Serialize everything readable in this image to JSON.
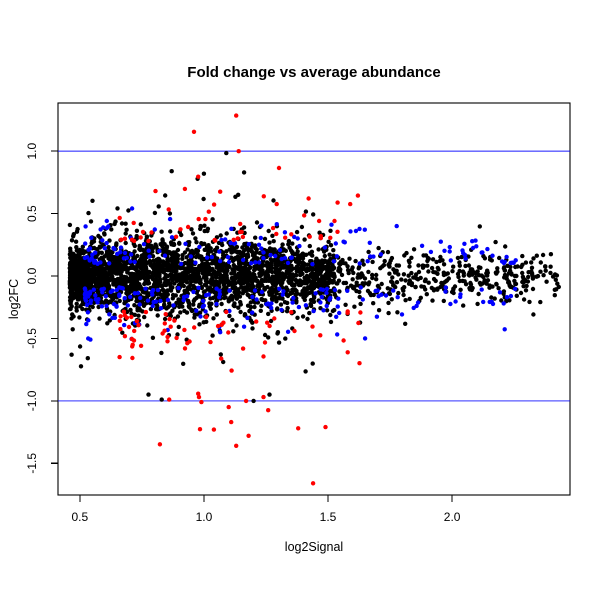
{
  "chart_data": {
    "type": "scatter",
    "title": "Fold change vs average abundance",
    "xlabel": "log2Signal",
    "ylabel": "log2FC",
    "xlim": [
      0.412,
      2.475
    ],
    "ylim": [
      -1.754,
      1.386
    ],
    "x_ticks": [
      0.5,
      1.0,
      1.5,
      2.0
    ],
    "x_tick_labels": [
      "0.5",
      "1.0",
      "1.5",
      "2.0"
    ],
    "y_ticks": [
      -1.5,
      -1.0,
      -0.5,
      0.0,
      0.5,
      1.0
    ],
    "y_tick_labels": [
      "-1.5",
      "-1.0",
      "-0.5",
      "0.0",
      "0.5",
      "1.0"
    ],
    "grid": false,
    "background": "#ffffff",
    "axis_color": "#000000",
    "point_radius": 2.2,
    "threshold_lines": {
      "values": [
        1.0,
        -1.0
      ],
      "color": "#0000ff"
    },
    "series": [
      {
        "name": "black-points-bulk",
        "color": "#000000",
        "mode": "core",
        "n": 3200,
        "seed": 101,
        "x_mix": [
          {
            "w": 0.72,
            "min": 0.46,
            "span": 1.07,
            "pow": 1.55
          },
          {
            "w": 0.28,
            "min": 0.5,
            "span": 1.93,
            "pow": 1.15
          }
        ],
        "sd_base": 0.082,
        "sd_peak": 0.075,
        "sd_center": 1.05,
        "sd_width": 0.16,
        "outlier_frac": 0.075,
        "outlier_mult": 2.3,
        "extreme_frac": 0.013,
        "extreme_mult": 3.5,
        "y_clamp": [
          -0.95,
          0.88
        ]
      },
      {
        "name": "blue-highlighted-points",
        "color": "#0000ff",
        "mode": "band",
        "n": 300,
        "seed": 202,
        "x_mix": [
          {
            "w": 1,
            "min": 0.52,
            "span": 1.76,
            "pow": 1.9
          }
        ],
        "y_base": 0.09,
        "y_sd": 0.15,
        "neg_prob": 0.52,
        "y_maxabs": 0.55
      },
      {
        "name": "red-highlighted-points",
        "color": "#ff0000",
        "mode": "mix",
        "n": 115,
        "seed": 303,
        "x_mix": [
          {
            "w": 1,
            "min": 0.66,
            "span": 1.0,
            "pow": 1.6
          }
        ],
        "neg_prob": 0.55,
        "pos_components": [
          {
            "w": 0.88,
            "base": 0.28,
            "sd": 0.17
          },
          {
            "w": 0.12,
            "base": 0.52,
            "sd": 0.15
          }
        ],
        "neg_components": [
          {
            "w": 0.9,
            "base": 0.28,
            "sd": 0.2
          },
          {
            "w": 0.1,
            "base": 0.62,
            "sd": 0.22
          }
        ],
        "pos_max": 0.92,
        "neg_max": 1.42
      }
    ],
    "fixed_points": [
      {
        "x": 1.13,
        "y": 1.285,
        "color": "#ff0000"
      },
      {
        "x": 0.96,
        "y": 1.155,
        "color": "#ff0000"
      },
      {
        "x": 1.14,
        "y": 1.0,
        "color": "#ff0000"
      },
      {
        "x": 1.09,
        "y": 0.985,
        "color": "#000000"
      },
      {
        "x": 0.87,
        "y": 0.84,
        "color": "#000000"
      },
      {
        "x": 1.0,
        "y": 0.82,
        "color": "#000000"
      },
      {
        "x": 0.83,
        "y": -0.99,
        "color": "#000000"
      },
      {
        "x": 1.2,
        "y": -1.0,
        "color": "#000000"
      },
      {
        "x": 0.86,
        "y": -0.99,
        "color": "#ff0000"
      },
      {
        "x": 0.98,
        "y": -0.97,
        "color": "#ff0000"
      },
      {
        "x": 0.99,
        "y": -1.01,
        "color": "#ff0000"
      },
      {
        "x": 1.17,
        "y": -1.0,
        "color": "#ff0000"
      },
      {
        "x": 1.24,
        "y": -0.97,
        "color": "#ff0000"
      },
      {
        "x": 1.1,
        "y": -1.05,
        "color": "#ff0000"
      },
      {
        "x": 1.11,
        "y": -1.17,
        "color": "#ff0000"
      },
      {
        "x": 1.04,
        "y": -1.23,
        "color": "#ff0000"
      },
      {
        "x": 1.18,
        "y": -1.28,
        "color": "#ff0000"
      },
      {
        "x": 1.13,
        "y": -1.36,
        "color": "#ff0000"
      },
      {
        "x": 1.38,
        "y": -1.22,
        "color": "#ff0000"
      },
      {
        "x": 1.49,
        "y": -1.21,
        "color": "#ff0000"
      },
      {
        "x": 1.44,
        "y": -1.66,
        "color": "#ff0000"
      }
    ]
  }
}
